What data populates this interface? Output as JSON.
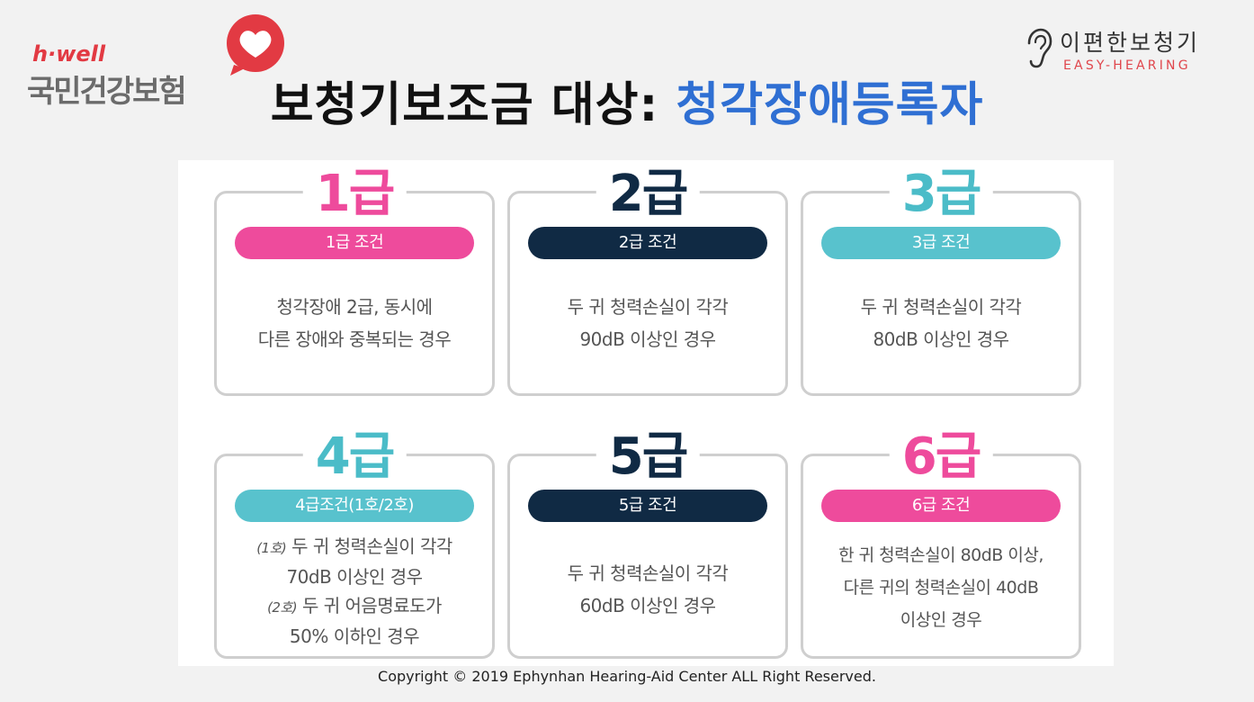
{
  "logo_left": {
    "brand": "h·well",
    "org": "국민건강보험",
    "icon": "heart-icon",
    "accent_color": "#e23a43"
  },
  "logo_right": {
    "icon": "ear-icon",
    "name_ko": "이편한보청기",
    "name_en": "EASY-HEARING",
    "accent_color": "#e0454b"
  },
  "title": {
    "main": "보청기보조금 대상: ",
    "accent": "청각장애등록자",
    "accent_color": "#2f6fd3"
  },
  "cards": [
    {
      "grade": "1급",
      "condition_label": "1급 조건",
      "color": "#ee4b9c",
      "lines": [
        "청각장애 2급, 동시에",
        "다른 장애와 중복되는 경우"
      ]
    },
    {
      "grade": "2급",
      "condition_label": "2급 조건",
      "color": "#102a44",
      "lines": [
        "두 귀 청력손실이 각각",
        "90dB 이상인 경우"
      ]
    },
    {
      "grade": "3급",
      "condition_label": "3급 조건",
      "color": "#4bbcc8",
      "lines": [
        "두 귀 청력손실이 각각",
        "80dB 이상인 경우"
      ]
    },
    {
      "grade": "4급",
      "condition_label": "4급조건(1호/2호)",
      "color": "#4bbcc8",
      "sub1_tag": "(1호)",
      "sub1_text": " 두 귀 청력손실이 각각",
      "sub1_line2": "70dB 이상인 경우",
      "sub2_tag": "(2호)",
      "sub2_text": " 두 귀 어음명료도가",
      "sub2_line2": "50% 이하인 경우"
    },
    {
      "grade": "5급",
      "condition_label": "5급 조건",
      "color": "#102a44",
      "lines": [
        "두 귀 청력손실이 각각",
        "60dB 이상인 경우"
      ]
    },
    {
      "grade": "6급",
      "condition_label": "6급 조건",
      "color": "#ee4b9c",
      "lines": [
        "한 귀 청력손실이 80dB 이상,",
        "다른 귀의 청력손실이 40dB",
        "이상인 경우"
      ]
    }
  ],
  "copyright": "Copyright © 2019 Ephynhan Hearing-Aid Center ALL Right Reserved."
}
